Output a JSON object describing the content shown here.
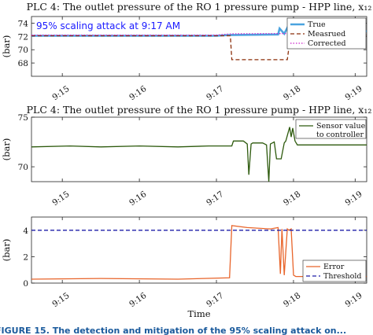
{
  "chart_data": [
    {
      "type": "line",
      "title": "PLC 4:  The outlet pressure of the RO 1 pressure pump - HPP line, x₁₂",
      "ylabel": "(bar)",
      "ylim": [
        66,
        75
      ],
      "yticks": [
        68,
        70,
        72,
        74
      ],
      "xlim": [
        1.1,
        5.45
      ],
      "xticks": [
        {
          "value": 1.5,
          "label": "9:15"
        },
        {
          "value": 2.5,
          "label": "9:16"
        },
        {
          "value": 3.5,
          "label": "9:17"
        },
        {
          "value": 4.5,
          "label": "9:18"
        },
        {
          "value": 5.3,
          "label": "9:19"
        }
      ],
      "annotation": "95% scaling attack at 9:17 AM",
      "legend_position": "top-right",
      "series": [
        {
          "name": "True",
          "color": "#4aa3df",
          "style": "solid",
          "x": [
            1.1,
            3.5,
            3.65,
            4.3,
            4.32,
            4.38,
            4.42,
            4.48,
            4.5,
            4.58,
            4.62,
            4.7,
            4.78,
            4.85,
            4.95,
            5.05,
            5.15,
            5.25,
            5.3,
            5.45
          ],
          "y": [
            72.1,
            72.1,
            72.2,
            72.3,
            73.2,
            72.4,
            73.3,
            72.4,
            73.5,
            72.4,
            73.2,
            72.6,
            73.0,
            72.2,
            74.1,
            72.8,
            72.6,
            72.8,
            72.6,
            72.8
          ]
        },
        {
          "name": "Measrued",
          "color": "#8b2e0a",
          "style": "dash",
          "x": [
            1.1,
            3.68,
            3.7,
            4.42,
            4.46,
            4.6,
            4.63,
            4.66,
            5.45
          ],
          "y": [
            72.1,
            72.1,
            68.5,
            68.5,
            72.0,
            72.0,
            70.5,
            72.1,
            72.2
          ]
        },
        {
          "name": "Corrected",
          "color": "#cc22cc",
          "style": "dot",
          "x": [
            1.1,
            3.5,
            3.7,
            5.45
          ],
          "y": [
            72.2,
            72.2,
            72.4,
            72.5
          ]
        }
      ]
    },
    {
      "type": "line",
      "title": "PLC 4:  The outlet pressure of the RO 1 pressure pump - HPP line, x₁₂",
      "ylabel": "(bar)",
      "ylim": [
        68.5,
        75
      ],
      "yticks": [
        70,
        75
      ],
      "xlim": [
        1.1,
        5.45
      ],
      "xticks": [
        {
          "value": 1.5,
          "label": "9:15"
        },
        {
          "value": 2.5,
          "label": "9:16"
        },
        {
          "value": 3.5,
          "label": "9:17"
        },
        {
          "value": 4.5,
          "label": "9:18"
        },
        {
          "value": 5.3,
          "label": "9:19"
        }
      ],
      "legend_position": "top-right",
      "series": [
        {
          "name": "Sensor value to controller",
          "color": "#2d5a0d",
          "style": "solid",
          "x": [
            1.1,
            1.6,
            2.0,
            2.5,
            3.0,
            3.4,
            3.7,
            3.72,
            3.85,
            3.9,
            3.92,
            3.95,
            3.97,
            4.1,
            4.15,
            4.18,
            4.2,
            4.25,
            4.28,
            4.34,
            4.38,
            4.4,
            4.45,
            4.47,
            4.49,
            4.52,
            4.55,
            4.6,
            4.9,
            5.2,
            5.45
          ],
          "y": [
            72.0,
            72.1,
            72.0,
            72.1,
            72.0,
            72.1,
            72.1,
            72.6,
            72.6,
            72.3,
            69.2,
            72.3,
            72.4,
            72.4,
            72.2,
            68.5,
            72.3,
            72.5,
            70.8,
            70.8,
            72.4,
            72.6,
            74.0,
            73.0,
            73.9,
            72.6,
            72.2,
            72.2,
            72.2,
            72.2,
            72.2
          ]
        }
      ]
    },
    {
      "type": "line",
      "ylabel": "(bar)",
      "ylim": [
        0,
        5
      ],
      "yticks": [
        0,
        2,
        4
      ],
      "xlim": [
        1.1,
        5.45
      ],
      "xticks": [
        {
          "value": 1.5,
          "label": "9:15"
        },
        {
          "value": 2.5,
          "label": "9:16"
        },
        {
          "value": 3.5,
          "label": "9:17"
        },
        {
          "value": 4.5,
          "label": "9:18"
        },
        {
          "value": 5.3,
          "label": "9:19"
        }
      ],
      "xlabel": "Time",
      "legend_position": "bottom-right",
      "series": [
        {
          "name": "Error",
          "color": "#e8642a",
          "style": "solid",
          "x": [
            1.1,
            2.0,
            3.0,
            3.67,
            3.7,
            3.9,
            4.2,
            4.3,
            4.33,
            4.35,
            4.38,
            4.42,
            4.44,
            4.47,
            4.5,
            4.53,
            4.6,
            5.0,
            5.45
          ],
          "y": [
            0.3,
            0.35,
            0.3,
            0.4,
            4.35,
            4.2,
            4.1,
            4.2,
            0.7,
            4.1,
            0.6,
            4.1,
            4.0,
            4.1,
            0.6,
            0.5,
            0.5,
            0.5,
            0.5
          ]
        },
        {
          "name": "Threshold",
          "color": "#1f1fa8",
          "style": "dash",
          "x": [
            1.1,
            5.45
          ],
          "y": [
            4.0,
            4.0
          ]
        }
      ]
    }
  ],
  "caption": "FIGURE 15.  The detection and mitigation of the 95% scaling attack on..."
}
